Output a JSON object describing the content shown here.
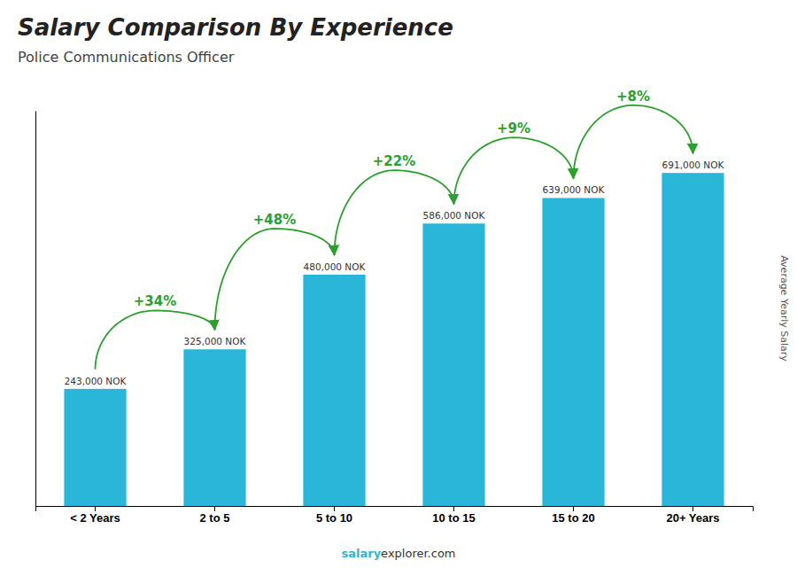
{
  "chart_data": {
    "type": "bar",
    "title": "Salary Comparison By Experience",
    "subtitle": "Police Communications Officer",
    "ylabel": "Average Yearly Salary",
    "categories": [
      "< 2 Years",
      "2 to 5",
      "5 to 10",
      "10 to 15",
      "15 to 20",
      "20+ Years"
    ],
    "values": [
      243000,
      325000,
      480000,
      586000,
      639000,
      691000
    ],
    "value_labels": [
      "243,000 NOK",
      "325,000 NOK",
      "480,000 NOK",
      "586,000 NOK",
      "639,000 NOK",
      "691,000 NOK"
    ],
    "data_labels": true,
    "annotations": [
      "+34%",
      "+48%",
      "+22%",
      "+9%",
      "+8%"
    ],
    "footer": [
      "salary",
      "explorer.com"
    ],
    "color": "#29b6d8",
    "ylim": [
      0,
      820000
    ],
    "tick_labels": "x"
  }
}
